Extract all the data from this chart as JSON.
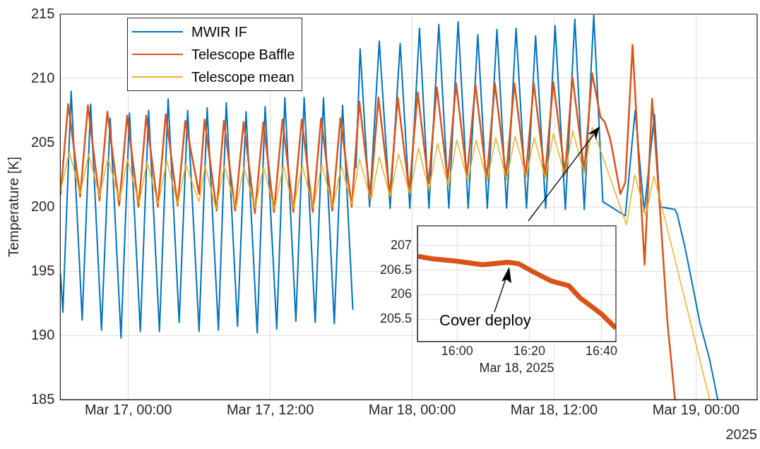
{
  "chart_data": [
    {
      "type": "line",
      "ylabel": "Temperature [K]",
      "xlabel": "2025",
      "xlim": [
        "2025-03-16T18:15",
        "2025-03-19T05:10"
      ],
      "xticks": [
        {
          "value": "2025-03-17T00:00",
          "label": "Mar 17, 00:00"
        },
        {
          "value": "2025-03-17T12:00",
          "label": "Mar 17, 12:00"
        },
        {
          "value": "2025-03-18T00:00",
          "label": "Mar 18, 00:00"
        },
        {
          "value": "2025-03-18T12:00",
          "label": "Mar 18, 12:00"
        },
        {
          "value": "2025-03-19T00:00",
          "label": "Mar 19, 00:00"
        }
      ],
      "ylim": [
        185,
        215
      ],
      "yticks": [
        185,
        190,
        195,
        200,
        205,
        210,
        215
      ],
      "grid": true,
      "legend": "top left",
      "series": [
        {
          "name": "MWIR IF",
          "color": "#0072bd",
          "x": [
            "2025-03-16T18:16",
            "2025-03-16T18:28",
            "2025-03-16T19:10",
            "2025-03-16T20:06",
            "2025-03-16T20:49",
            "2025-03-16T21:44",
            "2025-03-16T22:28",
            "2025-03-16T23:23",
            "2025-03-17T00:06",
            "2025-03-17T01:01",
            "2025-03-17T01:43",
            "2025-03-17T02:38",
            "2025-03-17T03:22",
            "2025-03-17T04:18",
            "2025-03-17T05:01",
            "2025-03-17T05:59",
            "2025-03-17T06:40",
            "2025-03-17T07:37",
            "2025-03-17T08:17",
            "2025-03-17T09:14",
            "2025-03-17T09:57",
            "2025-03-17T10:54",
            "2025-03-17T11:34",
            "2025-03-17T12:33",
            "2025-03-17T13:14",
            "2025-03-17T14:10",
            "2025-03-17T14:52",
            "2025-03-17T15:48",
            "2025-03-17T16:30",
            "2025-03-17T17:25",
            "2025-03-17T18:07",
            "2025-03-17T18:59",
            "2025-03-17T19:05",
            "2025-03-17T19:15",
            "2025-03-17T19:36",
            "2025-03-17T20:24",
            "2025-03-17T21:13",
            "2025-03-17T22:08",
            "2025-03-17T22:59",
            "2025-03-17T23:48",
            "2025-03-18T00:37",
            "2025-03-18T01:25",
            "2025-03-18T02:15",
            "2025-03-18T03:06",
            "2025-03-18T03:53",
            "2025-03-18T04:44",
            "2025-03-18T05:33",
            "2025-03-18T06:21",
            "2025-03-18T07:10",
            "2025-03-18T07:59",
            "2025-03-18T08:47",
            "2025-03-18T09:40",
            "2025-03-18T10:26",
            "2025-03-18T11:17",
            "2025-03-18T12:05",
            "2025-03-18T12:57",
            "2025-03-18T13:45",
            "2025-03-18T14:33",
            "2025-03-18T15:21",
            "2025-03-18T16:07",
            "2025-03-18T18:01",
            "2025-03-18T18:51",
            "2025-03-18T19:37",
            "2025-03-18T20:29",
            "2025-03-18T20:57",
            "2025-03-18T22:13",
            "2025-03-18T22:25",
            "2025-03-18T23:03",
            "2025-03-18T23:41",
            "2025-03-19T00:19",
            "2025-03-19T01:09",
            "2025-03-19T01:50"
          ],
          "values": [
            194.8,
            191.8,
            209.0,
            191.2,
            208.0,
            190.4,
            206.9,
            189.8,
            207.3,
            190.3,
            207.5,
            190.3,
            208.4,
            191.0,
            207.5,
            190.3,
            207.7,
            190.4,
            208.1,
            190.7,
            207.4,
            190.2,
            207.8,
            190.5,
            208.5,
            191.1,
            208.5,
            191.0,
            208.5,
            190.9,
            207.9,
            192.0,
            null,
            203.0,
            212.3,
            200.0,
            212.9,
            199.9,
            212.7,
            199.9,
            213.9,
            199.9,
            214.2,
            199.9,
            214.4,
            199.9,
            213.4,
            199.9,
            213.8,
            199.9,
            213.9,
            199.9,
            213.3,
            199.9,
            214.1,
            199.8,
            214.6,
            199.8,
            214.9,
            200.4,
            199.3,
            207.5,
            199.6,
            207.2,
            200.0,
            199.8,
            199.4,
            196.9,
            194.0,
            191.0,
            188.1,
            185.0
          ]
        },
        {
          "name": "Telescope Baffle",
          "color": "#d95319",
          "x": [
            "2025-03-16T18:16",
            "2025-03-16T18:55",
            "2025-03-16T19:56",
            "2025-03-16T20:35",
            "2025-03-16T21:34",
            "2025-03-16T22:14",
            "2025-03-16T23:14",
            "2025-03-16T23:54",
            "2025-03-17T00:52",
            "2025-03-17T01:31",
            "2025-03-17T02:30",
            "2025-03-17T03:10",
            "2025-03-17T04:10",
            "2025-03-17T04:49",
            "2025-03-17T05:59",
            "2025-03-17T06:27",
            "2025-03-17T07:28",
            "2025-03-17T08:05",
            "2025-03-17T09:02",
            "2025-03-17T09:45",
            "2025-03-17T10:42",
            "2025-03-17T11:25",
            "2025-03-17T12:19",
            "2025-03-17T13:02",
            "2025-03-17T13:57",
            "2025-03-17T14:40",
            "2025-03-17T15:36",
            "2025-03-17T16:18",
            "2025-03-17T17:15",
            "2025-03-17T17:56",
            "2025-03-17T18:53",
            "2025-03-17T19:32",
            "2025-03-17T20:28",
            "2025-03-17T21:09",
            "2025-03-17T22:07",
            "2025-03-17T22:47",
            "2025-03-17T23:45",
            "2025-03-18T00:28",
            "2025-03-18T01:23",
            "2025-03-18T02:05",
            "2025-03-18T03:00",
            "2025-03-18T03:43",
            "2025-03-18T04:38",
            "2025-03-18T05:21",
            "2025-03-18T06:18",
            "2025-03-18T07:00",
            "2025-03-18T07:56",
            "2025-03-18T08:39",
            "2025-03-18T09:36",
            "2025-03-18T10:17",
            "2025-03-18T11:14",
            "2025-03-18T11:56",
            "2025-03-18T12:55",
            "2025-03-18T13:33",
            "2025-03-18T14:33",
            "2025-03-18T15:13",
            "2025-03-18T15:55",
            "2025-03-18T16:17",
            "2025-03-18T16:44",
            "2025-03-18T16:58",
            "2025-03-18T17:36",
            "2025-03-18T18:01",
            "2025-03-18T18:38",
            "2025-03-18T19:16",
            "2025-03-18T19:39",
            "2025-03-18T20:17",
            "2025-03-18T20:57",
            "2025-03-18T21:35",
            "2025-03-18T22:13"
          ],
          "values": [
            200.9,
            208.0,
            200.8,
            207.9,
            200.5,
            207.4,
            200.1,
            207.1,
            200.0,
            207.1,
            200.0,
            207.2,
            200.1,
            206.7,
            201.0,
            206.8,
            199.7,
            206.7,
            199.7,
            206.6,
            199.5,
            206.6,
            199.6,
            206.8,
            199.6,
            206.8,
            199.6,
            206.9,
            199.7,
            206.9,
            200.0,
            208.2,
            200.8,
            208.5,
            200.9,
            208.5,
            201.2,
            208.9,
            201.8,
            209.3,
            202.1,
            209.6,
            202.4,
            209.5,
            202.2,
            209.6,
            202.4,
            209.6,
            202.4,
            209.6,
            202.4,
            209.7,
            202.6,
            210.1,
            202.8,
            210.4,
            207.0,
            206.6,
            205.3,
            204.2,
            201.0,
            201.9,
            212.6,
            201.7,
            195.5,
            208.4,
            199.8,
            191.0,
            185.0
          ]
        },
        {
          "name": "Telescope mean",
          "color": "#edb120",
          "x": [
            "2025-03-16T18:16",
            "2025-03-16T19:01",
            "2025-03-16T19:56",
            "2025-03-16T20:39",
            "2025-03-16T21:34",
            "2025-03-16T22:17",
            "2025-03-16T23:15",
            "2025-03-16T23:56",
            "2025-03-17T00:55",
            "2025-03-17T01:35",
            "2025-03-17T02:32",
            "2025-03-17T03:15",
            "2025-03-17T04:10",
            "2025-03-17T04:52",
            "2025-03-17T05:59",
            "2025-03-17T06:30",
            "2025-03-17T07:25",
            "2025-03-17T08:07",
            "2025-03-17T09:06",
            "2025-03-17T09:47",
            "2025-03-17T10:43",
            "2025-03-17T11:26",
            "2025-03-17T12:21",
            "2025-03-17T13:06",
            "2025-03-17T13:58",
            "2025-03-17T14:43",
            "2025-03-17T15:38",
            "2025-03-17T16:21",
            "2025-03-17T17:18",
            "2025-03-17T18:01",
            "2025-03-17T18:53",
            "2025-03-17T19:33",
            "2025-03-17T20:31",
            "2025-03-17T21:13",
            "2025-03-17T22:08",
            "2025-03-17T22:51",
            "2025-03-17T23:48",
            "2025-03-18T00:32",
            "2025-03-18T01:25",
            "2025-03-18T02:09",
            "2025-03-18T03:04",
            "2025-03-18T03:47",
            "2025-03-18T04:42",
            "2025-03-18T05:24",
            "2025-03-18T06:21",
            "2025-03-18T07:04",
            "2025-03-18T07:59",
            "2025-03-18T08:42",
            "2025-03-18T09:39",
            "2025-03-18T10:19",
            "2025-03-18T11:16",
            "2025-03-18T11:56",
            "2025-03-18T12:55",
            "2025-03-18T13:34",
            "2025-03-18T14:33",
            "2025-03-18T15:13",
            "2025-03-18T15:55",
            "2025-03-18T18:07",
            "2025-03-18T18:49",
            "2025-03-18T19:45",
            "2025-03-18T20:26",
            "2025-03-18T20:57",
            "2025-03-18T22:13",
            "2025-03-19T01:09"
          ],
          "values": [
            201.2,
            204.3,
            201.0,
            204.1,
            200.8,
            203.8,
            200.5,
            203.7,
            200.3,
            203.5,
            200.2,
            203.6,
            200.2,
            203.3,
            200.4,
            203.2,
            199.8,
            203.2,
            199.9,
            203.1,
            199.9,
            203.1,
            199.8,
            203.2,
            199.9,
            203.2,
            199.9,
            203.3,
            200.0,
            203.2,
            200.2,
            203.7,
            200.5,
            203.9,
            200.8,
            204.1,
            201.0,
            204.6,
            201.3,
            204.9,
            201.6,
            205.2,
            202.0,
            205.2,
            202.0,
            205.4,
            202.1,
            205.5,
            202.3,
            205.4,
            202.2,
            205.7,
            202.4,
            205.9,
            202.6,
            206.2,
            204.4,
            198.6,
            202.5,
            199.3,
            202.4,
            200.6,
            195.9,
            185.0
          ]
        }
      ]
    },
    {
      "type": "line",
      "xlabel": "Mar 18, 2025",
      "xlim": [
        "2025-03-18T15:49",
        "2025-03-18T16:44"
      ],
      "xticks": [
        {
          "value": "2025-03-18T16:00",
          "label": "16:00"
        },
        {
          "value": "2025-03-18T16:20",
          "label": "16:20"
        },
        {
          "value": "2025-03-18T16:40",
          "label": "16:40"
        }
      ],
      "ylim": [
        205.05,
        207.4
      ],
      "yticks": [
        205.5,
        206,
        206.5,
        207
      ],
      "grid": true,
      "annotations": [
        "Cover deploy"
      ],
      "series": [
        {
          "color": "#d95319",
          "x": [
            "2025-03-18T15:49",
            "2025-03-18T15:53",
            "2025-03-18T16:00",
            "2025-03-18T16:07",
            "2025-03-18T16:14",
            "2025-03-18T16:17",
            "2025-03-18T16:21",
            "2025-03-18T16:26",
            "2025-03-18T16:31",
            "2025-03-18T16:34",
            "2025-03-18T16:40",
            "2025-03-18T16:44"
          ],
          "values": [
            206.78,
            206.73,
            206.68,
            206.61,
            206.66,
            206.63,
            206.47,
            206.28,
            206.18,
            205.94,
            205.61,
            205.32
          ]
        }
      ]
    }
  ]
}
